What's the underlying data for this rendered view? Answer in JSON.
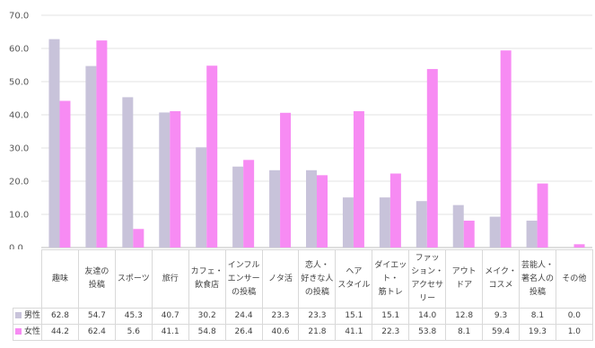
{
  "chart_data": {
    "type": "bar",
    "categories": [
      "趣味",
      "友達の\n投稿",
      "スポーツ",
      "旅行",
      "カフェ・\n飲食店",
      "インフル\nエンサー\nの投稿",
      "ノタ活",
      "恋人・\n好きな人\nの投稿",
      "ヘア\nスタイル",
      "ダイエッ\nト・\n筋トレ",
      "ファッ\nション・\nアクセサ\nリー",
      "アウト\nドア",
      "メイク・\nコスメ",
      "芸能人・\n著名人の\n投稿",
      "その他"
    ],
    "series": [
      {
        "name": "男性",
        "color": "#c8c3da",
        "values": [
          62.8,
          54.7,
          45.3,
          40.7,
          30.2,
          24.4,
          23.3,
          23.3,
          15.1,
          15.1,
          14.0,
          12.8,
          9.3,
          8.1,
          0.0
        ],
        "labels": [
          "62.8",
          "54.7",
          "45.3",
          "40.7",
          "30.2",
          "24.4",
          "23.3",
          "23.3",
          "15.1",
          "15.1",
          "14.0",
          "12.8",
          "9.3",
          "8.1",
          "0.0"
        ]
      },
      {
        "name": "女性",
        "color": "#f78bf3",
        "values": [
          44.2,
          62.4,
          5.6,
          41.1,
          54.8,
          26.4,
          40.6,
          21.8,
          41.1,
          22.3,
          53.8,
          8.1,
          59.4,
          19.3,
          1.0
        ],
        "labels": [
          "44.2",
          "62.4",
          "5.6",
          "41.1",
          "54.8",
          "26.4",
          "40.6",
          "21.8",
          "41.1",
          "22.3",
          "53.8",
          "8.1",
          "59.4",
          "19.3",
          "1.0"
        ]
      }
    ],
    "ylim": [
      0,
      70
    ],
    "yticks": [
      "0.0",
      "10.0",
      "20.0",
      "30.0",
      "40.0",
      "50.0",
      "60.0",
      "70.0"
    ],
    "grid": true,
    "legend": "data-table"
  }
}
